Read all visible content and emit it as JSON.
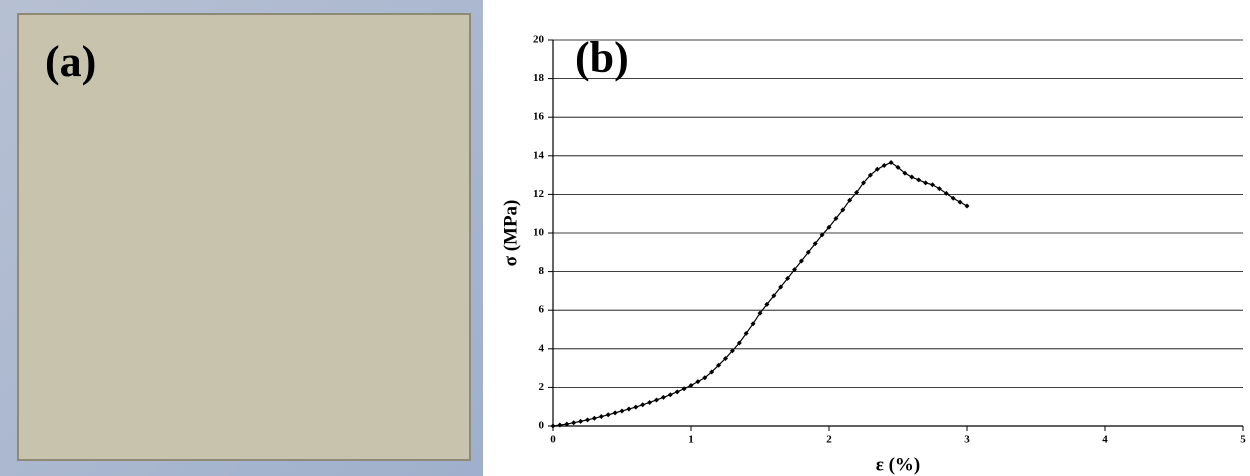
{
  "photo": {
    "label": "(a)"
  },
  "chart_data": {
    "type": "line",
    "annotation": "(b)",
    "xlabel": "ε (%)",
    "ylabel": "σ (MPa)",
    "color": "#000000",
    "grid": true,
    "xlim": [
      0,
      5
    ],
    "ylim": [
      0,
      20
    ],
    "xticks": [
      0,
      1,
      2,
      3,
      4,
      5
    ],
    "yticks": [
      0,
      2,
      4,
      6,
      8,
      10,
      12,
      14,
      16,
      18,
      20
    ],
    "x": [
      0,
      0.05,
      0.1,
      0.15,
      0.2,
      0.25,
      0.3,
      0.35,
      0.4,
      0.45,
      0.5,
      0.55,
      0.6,
      0.65,
      0.7,
      0.75,
      0.8,
      0.85,
      0.9,
      0.95,
      1.0,
      1.05,
      1.1,
      1.15,
      1.2,
      1.25,
      1.3,
      1.35,
      1.4,
      1.45,
      1.5,
      1.55,
      1.6,
      1.65,
      1.7,
      1.75,
      1.8,
      1.85,
      1.9,
      1.95,
      2.0,
      2.05,
      2.1,
      2.15,
      2.2,
      2.25,
      2.3,
      2.35,
      2.4,
      2.45,
      2.5,
      2.55,
      2.6,
      2.65,
      2.7,
      2.75,
      2.8,
      2.85,
      2.9,
      2.95,
      3.0
    ],
    "values": [
      0,
      0.05,
      0.1,
      0.17,
      0.24,
      0.32,
      0.4,
      0.49,
      0.58,
      0.68,
      0.78,
      0.88,
      0.98,
      1.1,
      1.22,
      1.35,
      1.48,
      1.62,
      1.77,
      1.93,
      2.1,
      2.3,
      2.5,
      2.8,
      3.15,
      3.5,
      3.9,
      4.3,
      4.8,
      5.3,
      5.85,
      6.3,
      6.75,
      7.2,
      7.65,
      8.1,
      8.55,
      9.0,
      9.45,
      9.9,
      10.3,
      10.75,
      11.2,
      11.7,
      12.1,
      12.6,
      13.0,
      13.3,
      13.5,
      13.65,
      13.4,
      13.1,
      12.9,
      12.75,
      12.6,
      12.5,
      12.3,
      12.05,
      11.8,
      11.6,
      11.4
    ]
  }
}
